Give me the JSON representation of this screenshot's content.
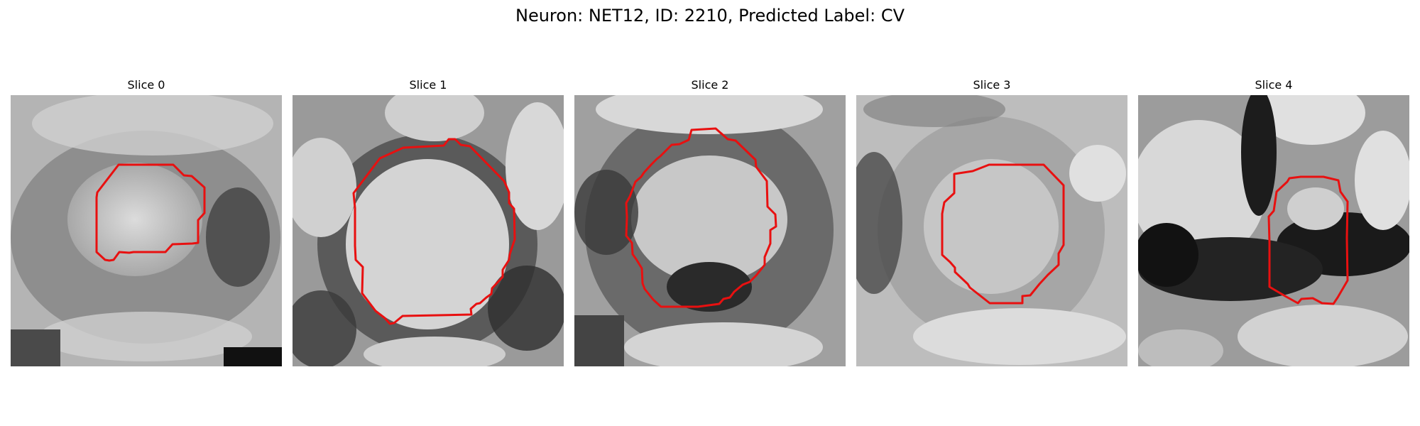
{
  "figure": {
    "title": "Neuron: NET12, ID: 2210, Predicted Label: CV"
  },
  "panels": [
    {
      "title": "Slice 0"
    },
    {
      "title": "Slice 1"
    },
    {
      "title": "Slice 2"
    },
    {
      "title": "Slice 3"
    },
    {
      "title": "Slice 4"
    }
  ],
  "colors": {
    "contour": "#e81010",
    "background": "#ffffff"
  }
}
